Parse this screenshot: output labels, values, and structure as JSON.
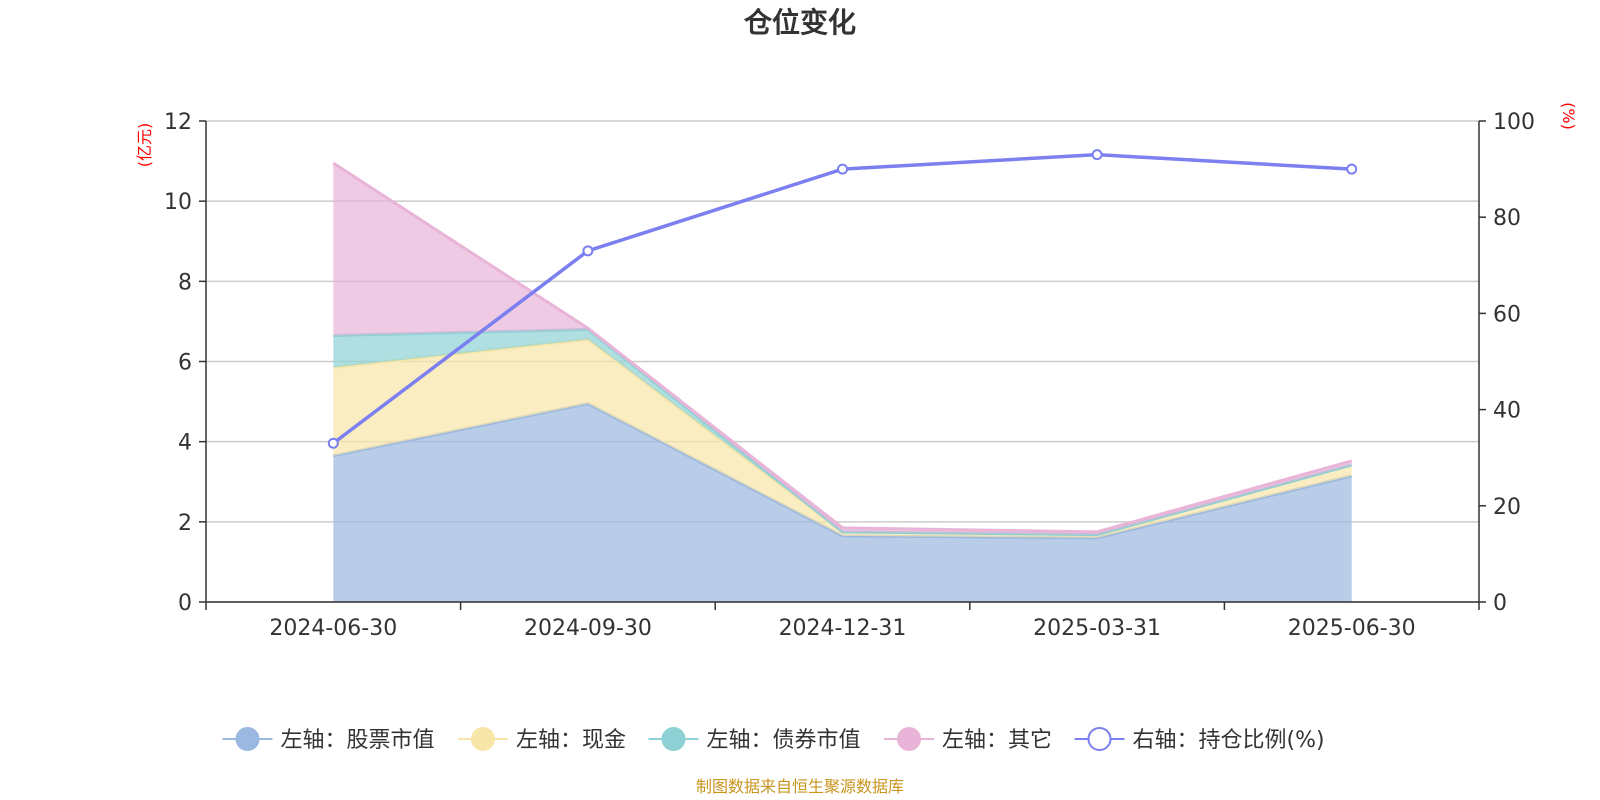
{
  "chart_data": {
    "type": "area",
    "title": "仓位变化",
    "categories": [
      "2024-06-30",
      "2024-09-30",
      "2024-12-31",
      "2025-03-31",
      "2025-06-30"
    ],
    "left_axis": {
      "unit": "(亿元)",
      "ylim": [
        0,
        12
      ],
      "ticks": [
        "0",
        "2",
        "4",
        "6",
        "8",
        "10",
        "12"
      ]
    },
    "right_axis": {
      "unit": "(%)",
      "ylim": [
        0,
        100
      ],
      "ticks": [
        "0",
        "20",
        "40",
        "60",
        "80",
        "100"
      ]
    },
    "stacked_series": [
      {
        "name": "左轴：股票市值",
        "color": "#9bb8e0",
        "values": [
          3.65,
          4.95,
          1.65,
          1.6,
          3.15
        ]
      },
      {
        "name": "左轴：现金",
        "color": "#f8e6a8",
        "values": [
          2.2,
          1.6,
          0.1,
          0.08,
          0.27
        ]
      },
      {
        "name": "左轴：债券市值",
        "color": "#8ed1d4",
        "values": [
          0.8,
          0.25,
          0.0,
          0.0,
          0.0
        ]
      },
      {
        "name": "左轴：其它",
        "color": "#e8b4d8",
        "values": [
          4.3,
          0.03,
          0.1,
          0.07,
          0.1
        ]
      }
    ],
    "line_series": {
      "name": "右轴：持仓比例(%)",
      "color": "#7b7fef",
      "values": [
        33,
        73,
        90,
        93,
        90
      ]
    },
    "grid": true,
    "legend_position": "bottom"
  },
  "footer": {
    "source": "制图数据来自恒生聚源数据库"
  }
}
